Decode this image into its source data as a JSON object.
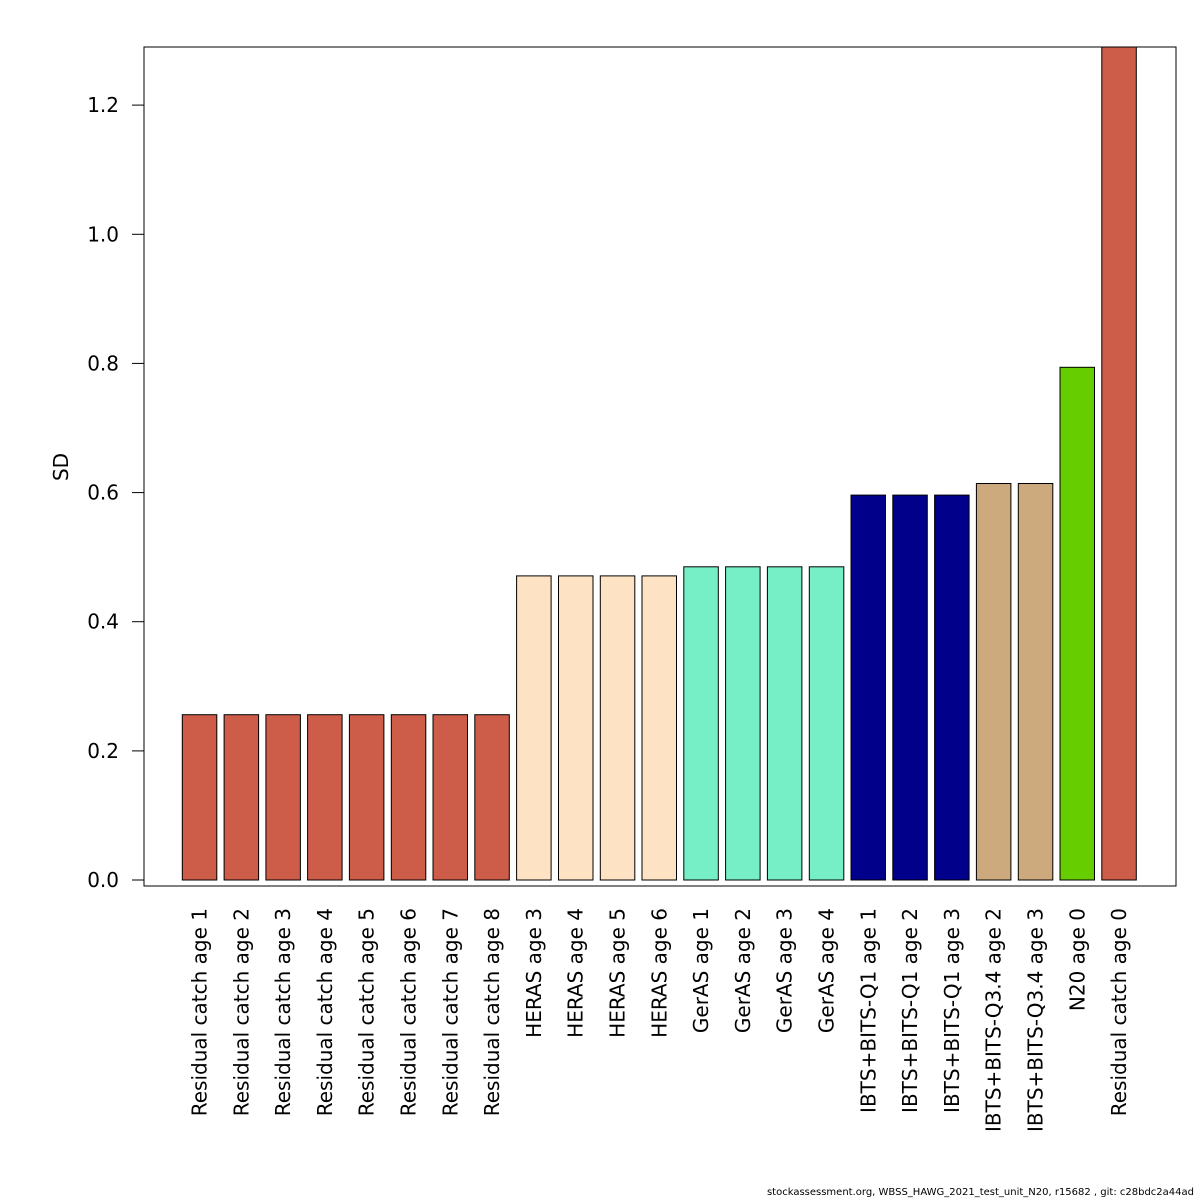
{
  "chart_data": {
    "type": "bar",
    "ylabel": "SD",
    "ylim": [
      0,
      1.29
    ],
    "yticks": [
      "0.0",
      "0.2",
      "0.4",
      "0.6",
      "0.8",
      "1.0",
      "1.2"
    ],
    "grid": false,
    "categories": [
      "Residual catch age 1",
      "Residual catch age 2",
      "Residual catch age 3",
      "Residual catch age 4",
      "Residual catch age 5",
      "Residual catch age 6",
      "Residual catch age 7",
      "Residual catch age 8",
      "HERAS age 3",
      "HERAS age 4",
      "HERAS age 5",
      "HERAS age 6",
      "GerAS age 1",
      "GerAS age 2",
      "GerAS age 3",
      "GerAS age 4",
      "IBTS+BITS-Q1 age 1",
      "IBTS+BITS-Q1 age 2",
      "IBTS+BITS-Q1 age 3",
      "IBTS+BITS-Q3.4 age 2",
      "IBTS+BITS-Q3.4 age 3",
      "N20 age 0",
      "Residual catch age 0"
    ],
    "values": [
      0.256,
      0.256,
      0.256,
      0.256,
      0.256,
      0.256,
      0.256,
      0.256,
      0.471,
      0.471,
      0.471,
      0.471,
      0.485,
      0.485,
      0.485,
      0.485,
      0.596,
      0.596,
      0.596,
      0.614,
      0.614,
      0.794,
      1.29
    ],
    "colors": [
      "#cd5c48",
      "#cd5c48",
      "#cd5c48",
      "#cd5c48",
      "#cd5c48",
      "#cd5c48",
      "#cd5c48",
      "#cd5c48",
      "#fde3c4",
      "#fde3c4",
      "#fde3c4",
      "#fde3c4",
      "#76eec6",
      "#76eec6",
      "#76eec6",
      "#76eec6",
      "#00008b",
      "#00008b",
      "#00008b",
      "#cdaa7d",
      "#cdaa7d",
      "#66cd00",
      "#cd5c48"
    ]
  },
  "footer": "stockassessment.org, WBSS_HAWG_2021_test_unit_N20, r15682 , git: c28bdc2a44ad"
}
